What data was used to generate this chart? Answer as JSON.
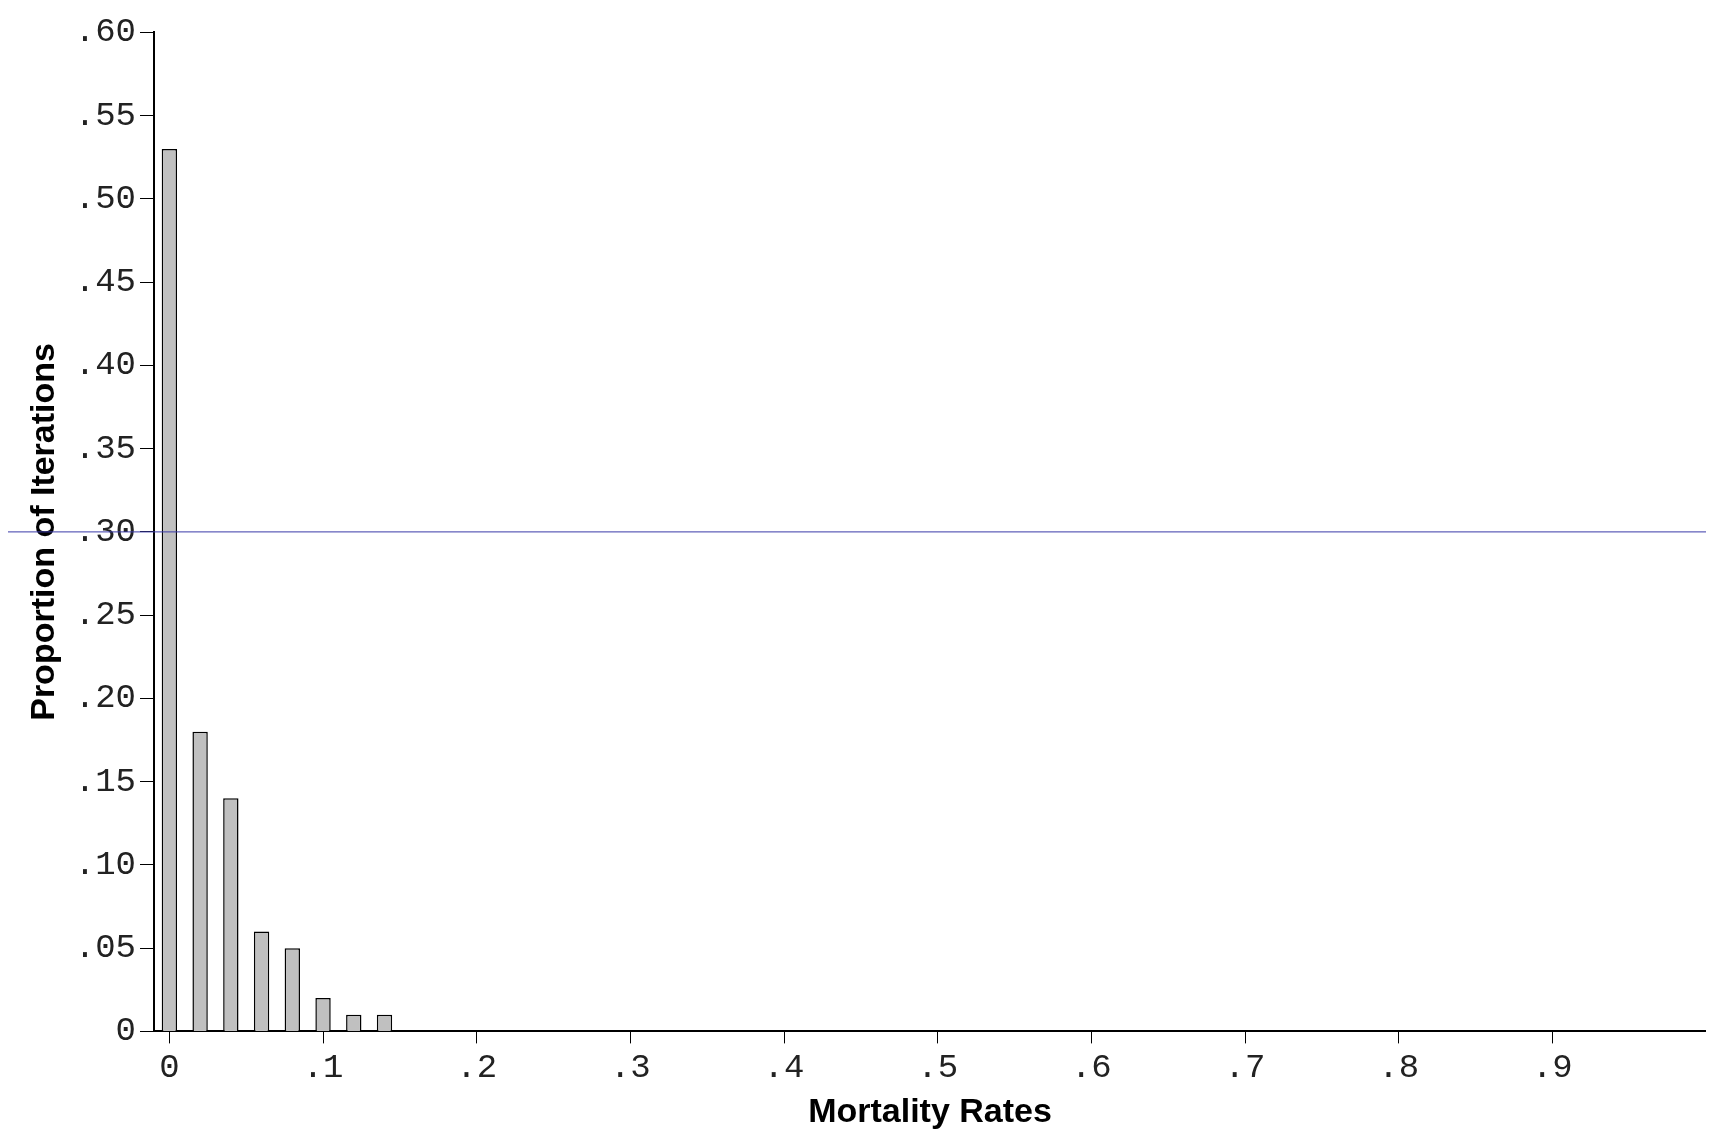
{
  "chart_data": {
    "type": "bar",
    "xlabel": "Mortality Rates",
    "ylabel": "Proportion of Iterations",
    "x": [
      0,
      0.02,
      0.04,
      0.06,
      0.08,
      0.1,
      0.12,
      0.14
    ],
    "values": [
      0.53,
      0.18,
      0.14,
      0.06,
      0.05,
      0.02,
      0.01,
      0.01
    ],
    "color": "#c0c0c0",
    "xlim": [
      -0.01,
      1.0
    ],
    "xticks": [
      {
        "value": 0,
        "label": "0"
      },
      {
        "value": 0.1,
        "label": ".1"
      },
      {
        "value": 0.2,
        "label": ".2"
      },
      {
        "value": 0.3,
        "label": ".3"
      },
      {
        "value": 0.4,
        "label": ".4"
      },
      {
        "value": 0.5,
        "label": ".5"
      },
      {
        "value": 0.6,
        "label": ".6"
      },
      {
        "value": 0.7,
        "label": ".7"
      },
      {
        "value": 0.8,
        "label": ".8"
      },
      {
        "value": 0.9,
        "label": ".9"
      }
    ],
    "ylim": [
      0,
      0.6
    ],
    "yticks": [
      {
        "value": 0,
        "label": "0"
      },
      {
        "value": 0.05,
        "label": ".05"
      },
      {
        "value": 0.1,
        "label": ".10"
      },
      {
        "value": 0.15,
        "label": ".15"
      },
      {
        "value": 0.2,
        "label": ".20"
      },
      {
        "value": 0.25,
        "label": ".25"
      },
      {
        "value": 0.3,
        "label": ".30"
      },
      {
        "value": 0.35,
        "label": ".35"
      },
      {
        "value": 0.4,
        "label": ".40"
      },
      {
        "value": 0.45,
        "label": ".45"
      },
      {
        "value": 0.5,
        "label": ".50"
      },
      {
        "value": 0.55,
        "label": ".55"
      },
      {
        "value": 0.6,
        "label": ".60"
      }
    ],
    "ref_lines": [
      {
        "axis": "y",
        "value": 0.3,
        "color": "#3a3aa8"
      }
    ],
    "grid": false,
    "legend": false
  }
}
